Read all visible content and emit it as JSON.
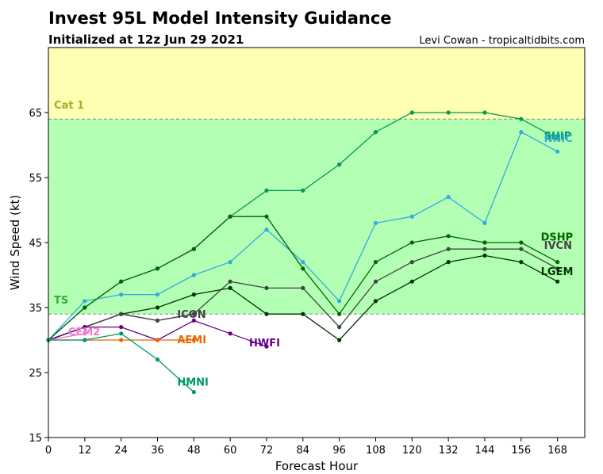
{
  "chart_data": {
    "type": "line",
    "title": "Invest 95L Model Intensity Guidance",
    "subtitle": "Initialized at 12z Jun 29 2021",
    "credit": "Levi Cowan - tropicaltidbits.com",
    "xlabel": "Forecast Hour",
    "ylabel": "Wind Speed (kt)",
    "xlim": [
      0,
      177
    ],
    "ylim": [
      15,
      75
    ],
    "xticks": [
      0,
      12,
      24,
      36,
      48,
      60,
      72,
      84,
      96,
      108,
      120,
      132,
      144,
      156,
      168
    ],
    "yticks": [
      15,
      25,
      35,
      45,
      55,
      65
    ],
    "grid": false,
    "bands": [
      {
        "label": "TS",
        "from": 34,
        "to": 64,
        "color": "#b3ffb3",
        "label_color": "#33aa33"
      },
      {
        "label": "Cat 1",
        "from": 64,
        "to": 75,
        "color": "#ffffb3",
        "label_color": "#aaaa33"
      }
    ],
    "series": [
      {
        "name": "SHIP",
        "color": "#009955",
        "x": [
          0,
          12,
          24,
          36,
          48,
          60,
          72,
          84,
          96,
          108,
          120,
          132,
          144,
          156,
          168
        ],
        "values": [
          30,
          35,
          39,
          41,
          44,
          49,
          53,
          53,
          57,
          62,
          65,
          65,
          65,
          64,
          61
        ]
      },
      {
        "name": "NNIC",
        "color": "#33aadd",
        "x": [
          0,
          12,
          24,
          36,
          48,
          60,
          72,
          84,
          96,
          108,
          120,
          132,
          144,
          156,
          168
        ],
        "values": [
          30,
          36,
          37,
          37,
          40,
          42,
          47,
          42,
          36,
          48,
          49,
          52,
          48,
          62,
          59
        ]
      },
      {
        "name": "DSHP",
        "color": "#006600",
        "x": [
          0,
          12,
          24,
          36,
          48,
          60,
          72,
          84,
          96,
          108,
          120,
          132,
          144,
          156,
          168
        ],
        "values": [
          30,
          35,
          39,
          41,
          44,
          49,
          49,
          41,
          34,
          42,
          45,
          46,
          45,
          45,
          42
        ]
      },
      {
        "name": "IVCN",
        "color": "#444444",
        "x": [
          0,
          12,
          24,
          36,
          48,
          60,
          72,
          84,
          96,
          108,
          120,
          132,
          144,
          156,
          168
        ],
        "values": [
          30,
          32,
          34,
          33,
          34,
          39,
          38,
          38,
          32,
          39,
          42,
          44,
          44,
          44,
          41
        ]
      },
      {
        "name": "LGEM",
        "color": "#003300",
        "x": [
          0,
          12,
          24,
          36,
          48,
          60,
          72,
          84,
          96,
          108,
          120,
          132,
          144,
          156,
          168
        ],
        "values": [
          30,
          32,
          34,
          35,
          37,
          38,
          34,
          34,
          30,
          36,
          39,
          42,
          43,
          42,
          39
        ]
      },
      {
        "name": "ICON",
        "color": "#444444",
        "x": [
          0,
          12,
          24,
          36,
          48
        ],
        "values": [
          30,
          32,
          34,
          33,
          34
        ]
      },
      {
        "name": "HWFI",
        "color": "#660088",
        "x": [
          0,
          12,
          24,
          36,
          48,
          60,
          72
        ],
        "values": [
          30,
          32,
          32,
          30,
          33,
          31,
          29
        ]
      },
      {
        "name": "CEM2",
        "color": "#ee77cc",
        "x": [
          0,
          12
        ],
        "values": [
          30,
          31
        ]
      },
      {
        "name": "AEMI",
        "color": "#ee6600",
        "x": [
          0,
          12,
          24,
          36,
          48
        ],
        "values": [
          30,
          30,
          30,
          30,
          30
        ]
      },
      {
        "name": "HMNI",
        "color": "#009966",
        "x": [
          0,
          12,
          24,
          36,
          48
        ],
        "values": [
          30,
          30,
          31,
          27,
          22
        ]
      }
    ]
  }
}
